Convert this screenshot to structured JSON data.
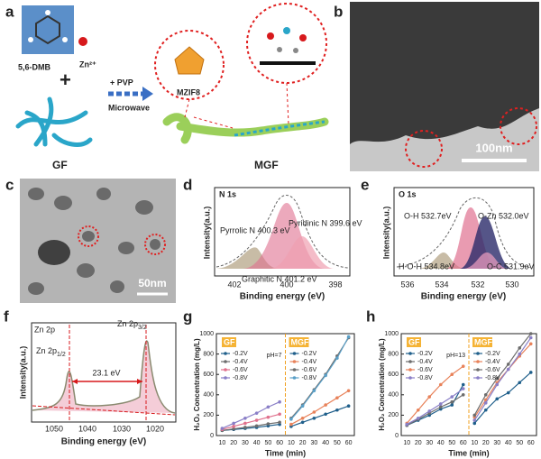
{
  "panels": {
    "a": {
      "label": "a",
      "molecule": "5,6-DMB",
      "ion": "Zn²⁺",
      "additive": "+ PVP",
      "method": "Microwave",
      "mof": "MZIF8",
      "start": "GF",
      "product": "MGF"
    },
    "b": {
      "label": "b",
      "scale": "100nm"
    },
    "c": {
      "label": "c",
      "scale": "50nm"
    },
    "d": {
      "label": "d",
      "title": "N 1s",
      "peaks": [
        "Pyrrolic N  400.3 eV",
        "Pyridinic N  399.6 eV",
        "Graphitic N  401.2 eV"
      ],
      "ylabel": "Intensity(a.u.)",
      "xlabel": "Binding energy (eV)",
      "xticks": [
        "402",
        "400",
        "398"
      ]
    },
    "e": {
      "label": "e",
      "title": "O 1s",
      "peaks": [
        "O-H  532.7eV",
        "O-Zn  532.0eV",
        "O-C  531.9eV",
        "H-O-H  534.8eV"
      ],
      "ylabel": "Intensity(a.u.)",
      "xlabel": "Binding energy (eV)",
      "xticks": [
        "536",
        "534",
        "532",
        "530"
      ]
    },
    "f": {
      "label": "f",
      "title": "Zn 2p",
      "peak1": {
        "main": "Zn 2p",
        "sub": "1/2"
      },
      "peak2": {
        "main": "Zn 2p",
        "sub": "3/2"
      },
      "gap": "23.1 eV",
      "ylabel": "Intensity(a.u.)",
      "xlabel": "Binding energy (eV)",
      "xticks": [
        "1050",
        "1040",
        "1030",
        "1020"
      ]
    }
  },
  "chart_data": [
    {
      "type": "line",
      "panel": "g",
      "annotation": "pH=7",
      "groups": [
        "GF",
        "MGF"
      ],
      "xlabel": "Time (min)",
      "ylabel": "H₂O₂ Concentration (mg/L)",
      "categories": [
        10,
        20,
        30,
        40,
        50,
        60,
        10,
        20,
        30,
        40,
        50,
        60
      ],
      "ylim": [
        0,
        1000
      ],
      "yticks": [
        0,
        200,
        400,
        600,
        800,
        1000
      ],
      "series": [
        {
          "name": "-0.2V",
          "color": "#1f5f8b",
          "values": [
            50,
            60,
            70,
            80,
            95,
            110,
            null,
            null,
            null,
            null,
            null,
            null
          ]
        },
        {
          "name": "-0.4V",
          "color": "#6d6d6d",
          "values": [
            50,
            65,
            80,
            95,
            115,
            130,
            null,
            null,
            null,
            null,
            null,
            null
          ]
        },
        {
          "name": "-0.6V",
          "color": "#e0708c",
          "values": [
            60,
            90,
            120,
            150,
            180,
            210,
            null,
            null,
            null,
            null,
            null,
            null
          ]
        },
        {
          "name": "-0.8V",
          "color": "#8a7fc7",
          "values": [
            70,
            120,
            170,
            220,
            280,
            330,
            null,
            null,
            null,
            null,
            null,
            null
          ]
        },
        {
          "name": "-0.2V",
          "color": "#1f5f8b",
          "values": [
            null,
            null,
            null,
            null,
            null,
            null,
            90,
            130,
            170,
            210,
            250,
            290
          ]
        },
        {
          "name": "-0.4V",
          "color": "#e8825a",
          "values": [
            null,
            null,
            null,
            null,
            null,
            null,
            110,
            170,
            230,
            300,
            370,
            440
          ]
        },
        {
          "name": "-0.6V",
          "color": "#6d6d6d",
          "values": [
            null,
            null,
            null,
            null,
            null,
            null,
            170,
            300,
            450,
            600,
            780,
            960
          ]
        },
        {
          "name": "-0.8V",
          "color": "#5aa0c8",
          "values": [
            null,
            null,
            null,
            null,
            null,
            null,
            160,
            290,
            440,
            590,
            760,
            970
          ]
        }
      ]
    },
    {
      "type": "line",
      "panel": "h",
      "annotation": "pH=13",
      "groups": [
        "GF",
        "MGF"
      ],
      "xlabel": "Time (min)",
      "ylabel": "H₂O₂ Concentration (mg/L)",
      "categories": [
        10,
        20,
        30,
        40,
        50,
        60,
        10,
        20,
        30,
        40,
        50,
        60
      ],
      "ylim": [
        0,
        1000
      ],
      "yticks": [
        0,
        200,
        400,
        600,
        800,
        1000
      ],
      "series": [
        {
          "name": "-0.2V",
          "color": "#1f5f8b",
          "values": [
            100,
            150,
            200,
            260,
            300,
            500,
            null,
            null,
            null,
            null,
            null,
            null
          ]
        },
        {
          "name": "-0.4V",
          "color": "#6d6d6d",
          "values": [
            100,
            160,
            220,
            280,
            330,
            400,
            null,
            null,
            null,
            null,
            null,
            null
          ]
        },
        {
          "name": "-0.6V",
          "color": "#e8825a",
          "values": [
            120,
            250,
            380,
            500,
            600,
            680,
            null,
            null,
            null,
            null,
            null,
            null
          ]
        },
        {
          "name": "-0.8V",
          "color": "#8a7fc7",
          "values": [
            110,
            170,
            240,
            310,
            380,
            460,
            null,
            null,
            null,
            null,
            null,
            null
          ]
        },
        {
          "name": "-0.2V",
          "color": "#1f5f8b",
          "values": [
            null,
            null,
            null,
            null,
            null,
            null,
            120,
            250,
            360,
            420,
            520,
            620
          ]
        },
        {
          "name": "-0.4V",
          "color": "#e8825a",
          "values": [
            null,
            null,
            null,
            null,
            null,
            null,
            180,
            350,
            520,
            650,
            780,
            900
          ]
        },
        {
          "name": "-0.6V",
          "color": "#6d6d6d",
          "values": [
            null,
            null,
            null,
            null,
            null,
            null,
            200,
            400,
            560,
            700,
            860,
            1000
          ]
        },
        {
          "name": "-0.8V",
          "color": "#8a7fc7",
          "values": [
            null,
            null,
            null,
            null,
            null,
            null,
            150,
            320,
            500,
            650,
            800,
            960
          ]
        }
      ]
    }
  ]
}
